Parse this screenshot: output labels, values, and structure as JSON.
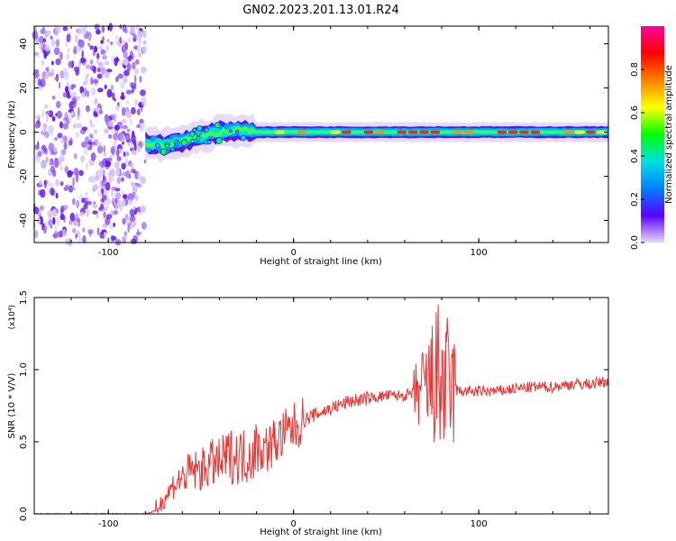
{
  "figure_title": "GN02.2023.201.13.01.R24",
  "chart_data": [
    {
      "type": "heatmap",
      "title": "",
      "xlabel": "Height of straight line (km)",
      "ylabel": "Frequency (Hz)",
      "xlim": [
        -140,
        170
      ],
      "ylim": [
        -50,
        48
      ],
      "xticks": [
        -100,
        0,
        100
      ],
      "yticks": [
        -40,
        -20,
        0,
        20,
        40
      ],
      "grid": false,
      "noise_region_x": [
        -140,
        -80
      ],
      "ridge": {
        "description_points_x": [
          -80,
          -70,
          -60,
          -50,
          -40,
          -30,
          -20,
          0,
          50,
          100,
          170
        ],
        "frequency_y": [
          -5,
          -6,
          -4,
          -2,
          0,
          1,
          0,
          0,
          0,
          0,
          0
        ]
      },
      "colorbar": {
        "label": "Normalized spectral amplitude",
        "range": [
          0.0,
          1.0
        ],
        "ticks": [
          "0.0",
          "0.2",
          "0.4",
          "0.6",
          "0.8"
        ],
        "colors": [
          "#e8d8f8",
          "#5a00ff",
          "#0080ff",
          "#00e0e0",
          "#00ff00",
          "#ffff00",
          "#ff8000",
          "#ff0000",
          "#ff00a0"
        ]
      }
    },
    {
      "type": "line",
      "title": "",
      "xlabel": "Height of straight line (km)",
      "ylabel": "SNR (10 * V/V)",
      "exponent_label": "(x10⁴)",
      "xlim": [
        -140,
        170
      ],
      "ylim": [
        0.0,
        1.5
      ],
      "xticks": [
        -100,
        0,
        100
      ],
      "yticks": [
        "0.0",
        "0.5",
        "1.0",
        "1.5"
      ],
      "grid": false,
      "series": [
        {
          "color": "#ee3333",
          "x": [
            -140,
            -80,
            -75,
            -70,
            -65,
            -60,
            -55,
            -50,
            -45,
            -40,
            -35,
            -30,
            -25,
            -20,
            -15,
            -10,
            -5,
            0,
            10,
            20,
            30,
            40,
            50,
            60,
            70,
            75,
            78,
            80,
            82,
            85,
            90,
            100,
            110,
            120,
            130,
            140,
            150,
            160,
            170
          ],
          "y": [
            0.0,
            0.0,
            0.02,
            0.1,
            0.2,
            0.25,
            0.3,
            0.3,
            0.35,
            0.35,
            0.4,
            0.4,
            0.4,
            0.45,
            0.45,
            0.5,
            0.55,
            0.6,
            0.68,
            0.73,
            0.78,
            0.8,
            0.82,
            0.82,
            0.85,
            0.9,
            0.95,
            0.9,
            0.88,
            0.86,
            0.85,
            0.85,
            0.85,
            0.87,
            0.88,
            0.88,
            0.9,
            0.9,
            0.92
          ]
        }
      ]
    }
  ]
}
